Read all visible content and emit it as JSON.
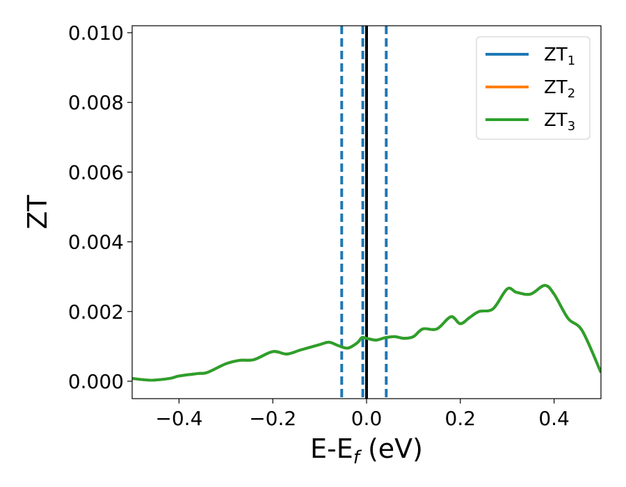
{
  "chart_data": {
    "type": "line",
    "xlabel": "E-E",
    "xlabel_subscript": "f",
    "xlabel_unit": " (eV)",
    "ylabel": "ZT",
    "xlim": [
      -0.5,
      0.5
    ],
    "ylim": [
      -0.0005,
      0.0102
    ],
    "xticks": [
      -0.4,
      -0.2,
      0.0,
      0.2,
      0.4
    ],
    "xtick_labels": [
      "−0.4",
      "−0.2",
      "0.0",
      "0.2",
      "0.4"
    ],
    "yticks": [
      0.0,
      0.002,
      0.004,
      0.006,
      0.008,
      0.01
    ],
    "ytick_labels": [
      "0.000",
      "0.002",
      "0.004",
      "0.006",
      "0.008",
      "0.010"
    ],
    "grid": false,
    "legend_position": "top-right",
    "series": [
      {
        "name": "ZT",
        "subscript": "1",
        "color": "#1f77b4",
        "x": [
          -0.5,
          -0.46,
          -0.42,
          -0.4,
          -0.36,
          -0.34,
          -0.3,
          -0.27,
          -0.24,
          -0.2,
          -0.17,
          -0.14,
          -0.1,
          -0.08,
          -0.06,
          -0.04,
          -0.02,
          -0.01,
          0.0,
          0.02,
          0.04,
          0.06,
          0.08,
          0.1,
          0.12,
          0.15,
          0.18,
          0.2,
          0.22,
          0.24,
          0.27,
          0.3,
          0.32,
          0.35,
          0.38,
          0.4,
          0.43,
          0.46,
          0.5
        ],
        "y": [
          8e-05,
          3e-05,
          8e-05,
          0.00015,
          0.00022,
          0.00025,
          0.0005,
          0.0006,
          0.00062,
          0.00085,
          0.00078,
          0.0009,
          0.00105,
          0.00112,
          0.00102,
          0.00095,
          0.0011,
          0.00125,
          0.00123,
          0.00118,
          0.00125,
          0.00128,
          0.00123,
          0.00128,
          0.0015,
          0.0015,
          0.00185,
          0.00165,
          0.00183,
          0.002,
          0.00208,
          0.00265,
          0.00255,
          0.0025,
          0.00275,
          0.0025,
          0.0018,
          0.00145,
          0.00025
        ]
      },
      {
        "name": "ZT",
        "subscript": "2",
        "color": "#ff7f0e",
        "x": [
          -0.5,
          -0.46,
          -0.42,
          -0.4,
          -0.36,
          -0.34,
          -0.3,
          -0.27,
          -0.24,
          -0.2,
          -0.17,
          -0.14,
          -0.1,
          -0.08,
          -0.06,
          -0.04,
          -0.02,
          -0.01,
          0.0,
          0.02,
          0.04,
          0.06,
          0.08,
          0.1,
          0.12,
          0.15,
          0.18,
          0.2,
          0.22,
          0.24,
          0.27,
          0.3,
          0.32,
          0.35,
          0.38,
          0.4,
          0.43,
          0.46,
          0.5
        ],
        "y": [
          8e-05,
          3e-05,
          8e-05,
          0.00015,
          0.00022,
          0.00025,
          0.0005,
          0.0006,
          0.00062,
          0.00085,
          0.00078,
          0.0009,
          0.00105,
          0.00112,
          0.00102,
          0.00095,
          0.0011,
          0.00125,
          0.00123,
          0.00118,
          0.00125,
          0.00128,
          0.00123,
          0.00128,
          0.0015,
          0.0015,
          0.00185,
          0.00165,
          0.00183,
          0.002,
          0.00208,
          0.00265,
          0.00255,
          0.0025,
          0.00275,
          0.0025,
          0.0018,
          0.00145,
          0.00025
        ]
      },
      {
        "name": "ZT",
        "subscript": "3",
        "color": "#2ca02c",
        "x": [
          -0.5,
          -0.46,
          -0.42,
          -0.4,
          -0.36,
          -0.34,
          -0.3,
          -0.27,
          -0.24,
          -0.2,
          -0.17,
          -0.14,
          -0.1,
          -0.08,
          -0.06,
          -0.04,
          -0.02,
          -0.01,
          0.0,
          0.02,
          0.04,
          0.06,
          0.08,
          0.1,
          0.12,
          0.15,
          0.18,
          0.2,
          0.22,
          0.24,
          0.27,
          0.3,
          0.32,
          0.35,
          0.38,
          0.4,
          0.43,
          0.46,
          0.5
        ],
        "y": [
          8e-05,
          3e-05,
          8e-05,
          0.00015,
          0.00022,
          0.00025,
          0.0005,
          0.0006,
          0.00062,
          0.00085,
          0.00078,
          0.0009,
          0.00105,
          0.00112,
          0.00102,
          0.00095,
          0.0011,
          0.00125,
          0.00123,
          0.00118,
          0.00125,
          0.00128,
          0.00123,
          0.00128,
          0.0015,
          0.0015,
          0.00185,
          0.00165,
          0.00183,
          0.002,
          0.00208,
          0.00265,
          0.00255,
          0.0025,
          0.00275,
          0.0025,
          0.0018,
          0.00145,
          0.00025
        ]
      }
    ],
    "vlines": [
      {
        "x": -0.053,
        "style": "dashed",
        "color": "#1f77b4"
      },
      {
        "x": -0.008,
        "style": "dashed",
        "color": "#1f77b4"
      },
      {
        "x": 0.0,
        "style": "solid",
        "color": "#000000"
      },
      {
        "x": 0.042,
        "style": "dashed",
        "color": "#1f77b4"
      }
    ]
  }
}
